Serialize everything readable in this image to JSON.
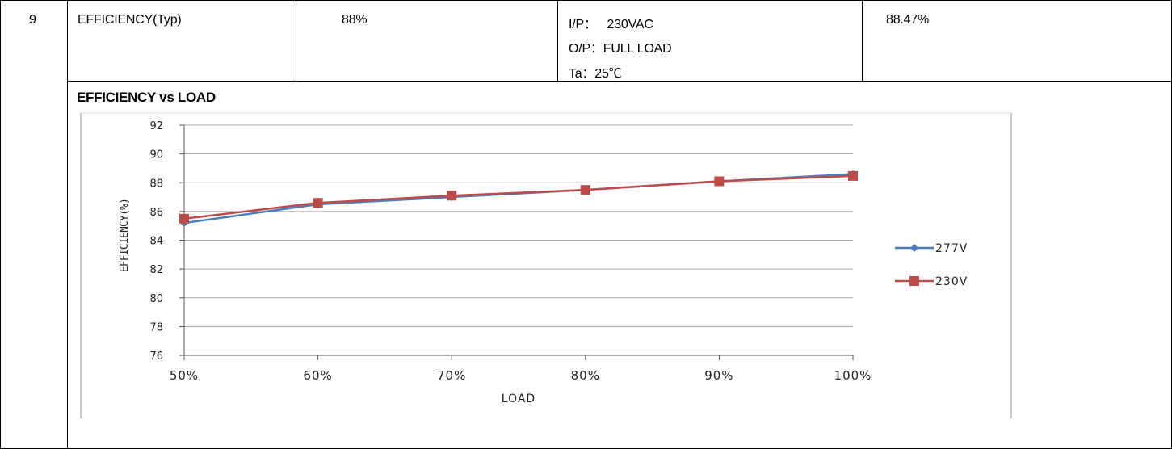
{
  "row": {
    "no": "9",
    "item": "EFFICIENCY(Typ)",
    "spec": "88%",
    "condition": [
      "I/P：   230VAC",
      "O/P：FULL LOAD",
      "Ta：25℃"
    ],
    "result": "88.47%"
  },
  "chart_title": "EFFICIENCY vs LOAD",
  "chart_data": {
    "type": "line",
    "title": "",
    "xlabel": "LOAD",
    "ylabel": "EFFICIENCY(%)",
    "categories": [
      "50%",
      "60%",
      "70%",
      "80%",
      "90%",
      "100%"
    ],
    "ylim": [
      76,
      92
    ],
    "yticks": [
      92,
      90,
      88,
      86,
      84,
      82,
      80,
      78,
      76
    ],
    "grid": true,
    "legend_position": "right",
    "series": [
      {
        "name": "277V",
        "values": [
          85.2,
          86.5,
          87.0,
          87.5,
          88.1,
          88.6
        ],
        "color": "#4a7ebb",
        "marker": "diamond"
      },
      {
        "name": "230V",
        "values": [
          85.5,
          86.6,
          87.1,
          87.5,
          88.1,
          88.47
        ],
        "color": "#be4b48",
        "marker": "square"
      }
    ]
  }
}
